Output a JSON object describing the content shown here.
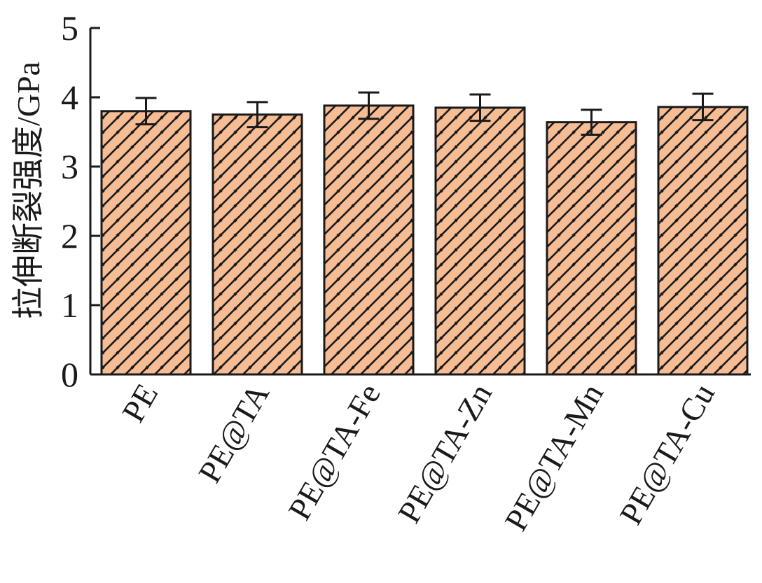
{
  "chart_data": {
    "type": "bar",
    "title": "",
    "xlabel": "",
    "ylabel": "拉伸断裂强度/GPa",
    "ylim": [
      0,
      5
    ],
    "yticks": [
      "0",
      "1",
      "2",
      "3",
      "4",
      "5"
    ],
    "categories": [
      "PE",
      "PE@TA",
      "PE@TA-Fe",
      "PE@TA-Zn",
      "PE@TA-Mn",
      "PE@TA-Cu"
    ],
    "values": [
      3.8,
      3.75,
      3.88,
      3.85,
      3.64,
      3.86
    ],
    "errors": [
      0.19,
      0.18,
      0.19,
      0.19,
      0.18,
      0.19
    ],
    "grid": false,
    "legend": "none",
    "bar_color": "#F6BC94",
    "hatch_color": "#1a1a1a",
    "edge_color": "#1a1a1a"
  }
}
